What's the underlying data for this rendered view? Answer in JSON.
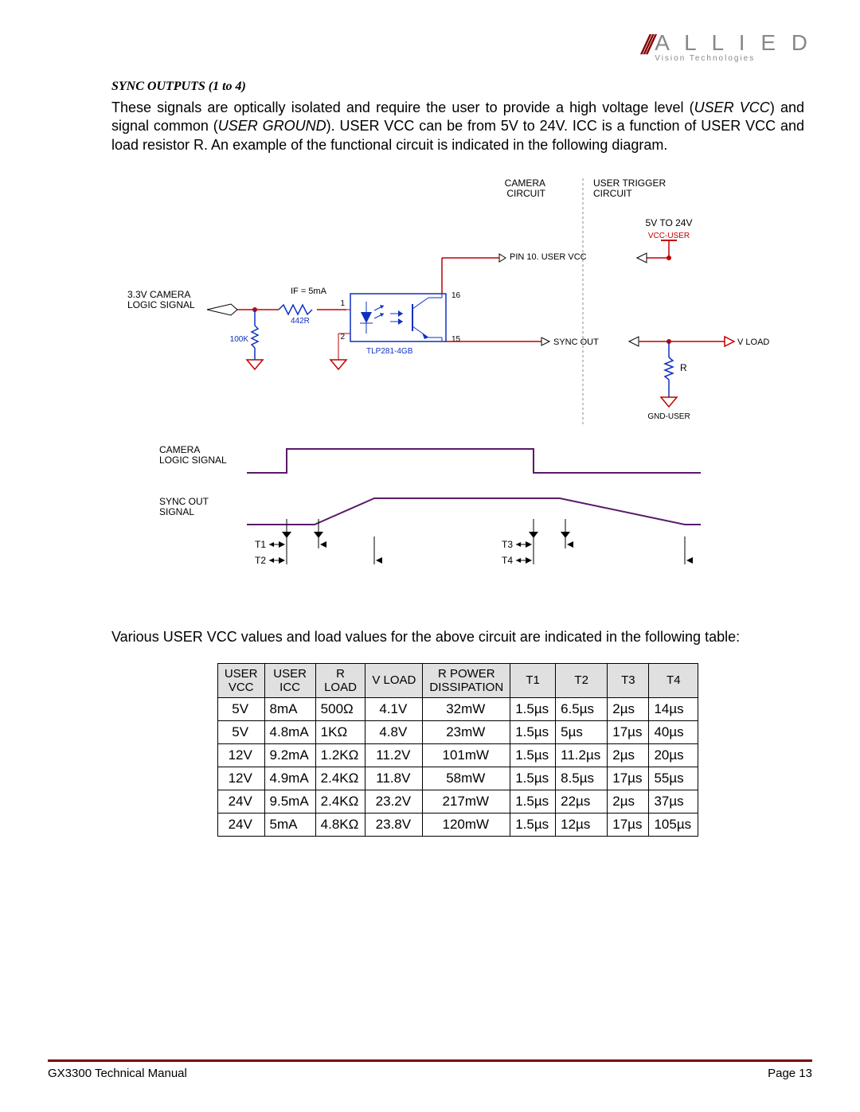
{
  "logo": {
    "main": "A L L I E D",
    "sub": "Vision Technologies"
  },
  "heading": "SYNC OUTPUTS (1 to 4)",
  "paragraph1": "These signals are optically isolated and require the user to provide a high voltage level (USER VCC) and signal common (USER GROUND). USER VCC can be from 5V to 24V. ICC is a function of USER VCC and load resistor R. An example of the functional circuit is indicated in the following diagram.",
  "paragraph2": "Various USER VCC values and load values for the above circuit are indicated in the following table:",
  "diagram": {
    "colors": {
      "red": "#c00000",
      "blue": "#1030c0",
      "dark": "#5a1a6a",
      "black": "#000"
    },
    "labels": {
      "camera_circuit": "CAMERA\nCIRCUIT",
      "user_trigger_circuit": "USER TRIGGER\nCIRCUIT",
      "v5_24": "5V TO 24V",
      "vcc_user": "VCC-USER",
      "pin10": "PIN 10. USER VCC",
      "logic33": "3.3V CAMERA\nLOGIC SIGNAL",
      "if5ma": "IF = 5mA",
      "r442": "442R",
      "r100k": "100K",
      "tlp": "TLP281-4GB",
      "pins": {
        "p1": "1",
        "p2": "2",
        "p15": "15",
        "p16": "16"
      },
      "sync_out": "SYNC OUT",
      "v_load": "V LOAD",
      "r_lbl": "R",
      "gnd_user": "GND-USER",
      "wave_camera": "CAMERA\nLOGIC SIGNAL",
      "wave_sync": "SYNC OUT\nSIGNAL",
      "t1": "T1",
      "t2": "T2",
      "t3": "T3",
      "t4": "T4"
    }
  },
  "table": {
    "columns": [
      "USER\nVCC",
      "USER\nICC",
      "R\nLOAD",
      "V LOAD",
      "R POWER\nDISSIPATION",
      "T1",
      "T2",
      "T3",
      "T4"
    ],
    "rows": [
      [
        "5V",
        "8mA",
        "500Ω",
        "4.1V",
        "32mW",
        "1.5µs",
        "6.5µs",
        "2µs",
        "14µs"
      ],
      [
        "5V",
        "4.8mA",
        "1KΩ",
        "4.8V",
        "23mW",
        "1.5µs",
        "5µs",
        "17µs",
        "40µs"
      ],
      [
        "12V",
        "9.2mA",
        "1.2KΩ",
        "11.2V",
        "101mW",
        "1.5µs",
        "11.2µs",
        "2µs",
        "20µs"
      ],
      [
        "12V",
        "4.9mA",
        "2.4KΩ",
        "11.8V",
        "58mW",
        "1.5µs",
        "8.5µs",
        "17µs",
        "55µs"
      ],
      [
        "24V",
        "9.5mA",
        "2.4KΩ",
        "23.2V",
        "217mW",
        "1.5µs",
        "22µs",
        "2µs",
        "37µs"
      ],
      [
        "24V",
        "5mA",
        "4.8KΩ",
        "23.8V",
        "120mW",
        "1.5µs",
        "12µs",
        "17µs",
        "105µs"
      ]
    ]
  },
  "footer": {
    "left": "GX3300 Technical Manual",
    "right": "Page 13"
  }
}
